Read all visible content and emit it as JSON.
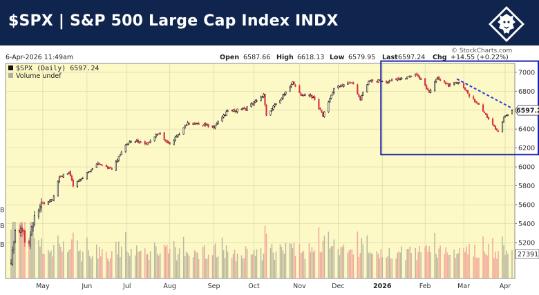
{
  "header": {
    "title": "$SPX | S&P 500 Large Cap Index INDX"
  },
  "chart_info": {
    "date_time": "6-Apr-2026 11:49am",
    "copyright": "© StockCharts.com",
    "legend_price": "$SPX (Daily) 6597.24",
    "legend_volume": "Volume undef",
    "last_price_tag": "6597.24",
    "volume_tag": "27391",
    "ohlc": [
      {
        "label": "Open",
        "value": "6587.66"
      },
      {
        "label": "High",
        "value": "6618.13"
      },
      {
        "label": "Low",
        "value": "6579.95"
      },
      {
        "label": "Last",
        "value": "6597.24"
      },
      {
        "label": "Chg",
        "value": "+14.55 (+0.22%)"
      }
    ],
    "left_edge_labels": [
      "B",
      "B",
      "B"
    ]
  },
  "colors": {
    "banner": "#10254d",
    "plot_bg": "#fcf9c7",
    "up_candle": "#111111",
    "down_candle": "#d62f3f",
    "vol_up": "#b2b09a",
    "vol_down": "#ef9e95",
    "annotation": "#1b24a8"
  },
  "chart_data": {
    "type": "candlestick",
    "title": "$SPX | S&P 500 Large Cap Index INDX",
    "y_ticks": [
      5200,
      5400,
      5600,
      5800,
      6000,
      6200,
      6400,
      6600,
      6800,
      7000
    ],
    "ylim": [
      4850,
      7050
    ],
    "x_ticks": [
      "May",
      "Jun",
      "Jul",
      "Aug",
      "Sep",
      "Oct",
      "Nov",
      "Dec",
      "2026",
      "Feb",
      "Mar",
      "Apr"
    ],
    "x_tick_dates": [
      "2025-05-01",
      "2025-06-02",
      "2025-07-01",
      "2025-08-01",
      "2025-09-02",
      "2025-10-01",
      "2025-11-03",
      "2025-12-01",
      "2026-01-02",
      "2026-02-02",
      "2026-03-02",
      "2026-04-01"
    ],
    "x_range": [
      "2025-04-07",
      "2026-04-06"
    ],
    "close_path": [
      [
        "2025-04-08",
        5000
      ],
      [
        "2025-04-11",
        5360
      ],
      [
        "2025-04-17",
        5280
      ],
      [
        "2025-04-21",
        5150
      ],
      [
        "2025-04-25",
        5520
      ],
      [
        "2025-05-01",
        5610
      ],
      [
        "2025-05-08",
        5660
      ],
      [
        "2025-05-13",
        5890
      ],
      [
        "2025-05-20",
        5940
      ],
      [
        "2025-05-23",
        5800
      ],
      [
        "2025-06-02",
        5930
      ],
      [
        "2025-06-10",
        6030
      ],
      [
        "2025-06-20",
        5970
      ],
      [
        "2025-06-27",
        6160
      ],
      [
        "2025-07-03",
        6280
      ],
      [
        "2025-07-15",
        6250
      ],
      [
        "2025-07-24",
        6360
      ],
      [
        "2025-08-01",
        6240
      ],
      [
        "2025-08-14",
        6460
      ],
      [
        "2025-08-22",
        6460
      ],
      [
        "2025-09-02",
        6420
      ],
      [
        "2025-09-12",
        6590
      ],
      [
        "2025-09-25",
        6610
      ],
      [
        "2025-10-08",
        6760
      ],
      [
        "2025-10-10",
        6550
      ],
      [
        "2025-10-17",
        6660
      ],
      [
        "2025-10-29",
        6890
      ],
      [
        "2025-11-04",
        6770
      ],
      [
        "2025-11-13",
        6740
      ],
      [
        "2025-11-20",
        6540
      ],
      [
        "2025-11-28",
        6840
      ],
      [
        "2025-12-11",
        6900
      ],
      [
        "2025-12-17",
        6720
      ],
      [
        "2025-12-24",
        6920
      ],
      [
        "2026-01-05",
        6900
      ],
      [
        "2026-01-14",
        6930
      ],
      [
        "2026-01-27",
        6980
      ],
      [
        "2026-02-05",
        6790
      ],
      [
        "2026-02-10",
        6940
      ],
      [
        "2026-02-19",
        6860
      ],
      [
        "2026-02-26",
        6900
      ],
      [
        "2026-03-06",
        6750
      ],
      [
        "2026-03-13",
        6650
      ],
      [
        "2026-03-20",
        6500
      ],
      [
        "2026-03-27",
        6380
      ],
      [
        "2026-03-31",
        6520
      ],
      [
        "2026-04-06",
        6597.24
      ]
    ],
    "annotations": [
      {
        "type": "trendline",
        "style": "dashed",
        "from": [
          "2026-02-25",
          6930
        ],
        "to": [
          "2026-04-06",
          6620
        ]
      },
      {
        "type": "rectangle",
        "from": [
          "2026-01-01",
          6130
        ],
        "to": [
          "2026-04-06",
          7060
        ]
      }
    ],
    "volume_series": "present, unlabeled",
    "grid": true
  }
}
